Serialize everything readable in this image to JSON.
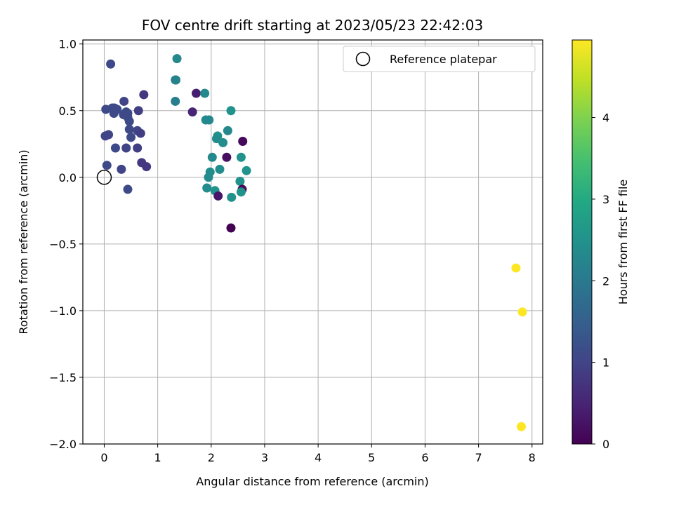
{
  "chart_data": {
    "type": "scatter",
    "title": "FOV centre drift starting at 2023/05/23 22:42:03",
    "xlabel": "Angular distance from reference (arcmin)",
    "ylabel": "Rotation from reference (arcmin)",
    "xlim": [
      -0.4,
      8.2
    ],
    "ylim": [
      -2.0,
      1.03
    ],
    "xticks": [
      0,
      1,
      2,
      3,
      4,
      5,
      6,
      7,
      8
    ],
    "xtick_labels": [
      "0",
      "1",
      "2",
      "3",
      "4",
      "5",
      "6",
      "7",
      "8"
    ],
    "yticks": [
      1.0,
      0.5,
      0.0,
      -0.5,
      -1.0,
      -1.5,
      -2.0
    ],
    "ytick_labels": [
      "1.0",
      "0.5",
      "0.0",
      "−0.5",
      "−1.0",
      "−1.5",
      "−2.0"
    ],
    "grid": true,
    "legend": {
      "placement": "top-right",
      "entries": [
        "Reference platepar"
      ]
    },
    "reference": {
      "x": 0,
      "y": 0
    },
    "colorbar": {
      "label": "Hours from first FF file",
      "min": 0,
      "max": 4.95,
      "ticks": [
        0,
        1,
        2,
        3,
        4
      ],
      "tick_labels": [
        "0",
        "1",
        "2",
        "3",
        "4"
      ],
      "colormap": "viridis"
    },
    "points": [
      {
        "x": 0.12,
        "y": 0.85,
        "h": 1.1
      },
      {
        "x": 0.03,
        "y": 0.51,
        "h": 1.1
      },
      {
        "x": 0.15,
        "y": 0.52,
        "h": 1.1
      },
      {
        "x": 0.19,
        "y": 0.52,
        "h": 1.1
      },
      {
        "x": 0.24,
        "y": 0.51,
        "h": 1.1
      },
      {
        "x": 0.18,
        "y": 0.48,
        "h": 1.1
      },
      {
        "x": 0.37,
        "y": 0.57,
        "h": 1.0
      },
      {
        "x": 0.36,
        "y": 0.47,
        "h": 1.1
      },
      {
        "x": 0.41,
        "y": 0.49,
        "h": 1.1
      },
      {
        "x": 0.44,
        "y": 0.48,
        "h": 1.1
      },
      {
        "x": 0.44,
        "y": 0.45,
        "h": 1.1
      },
      {
        "x": 0.47,
        "y": 0.42,
        "h": 1.1
      },
      {
        "x": 0.47,
        "y": 0.36,
        "h": 1.1
      },
      {
        "x": 0.5,
        "y": 0.3,
        "h": 1.1
      },
      {
        "x": 0.02,
        "y": 0.31,
        "h": 1.0
      },
      {
        "x": 0.08,
        "y": 0.32,
        "h": 1.0
      },
      {
        "x": 0.21,
        "y": 0.22,
        "h": 1.1
      },
      {
        "x": 0.41,
        "y": 0.22,
        "h": 1.0
      },
      {
        "x": 0.62,
        "y": 0.35,
        "h": 1.0
      },
      {
        "x": 0.68,
        "y": 0.33,
        "h": 0.9
      },
      {
        "x": 0.64,
        "y": 0.5,
        "h": 0.9
      },
      {
        "x": 0.74,
        "y": 0.62,
        "h": 0.8
      },
      {
        "x": 0.62,
        "y": 0.22,
        "h": 0.9
      },
      {
        "x": 0.05,
        "y": 0.09,
        "h": 1.1
      },
      {
        "x": 0.32,
        "y": 0.06,
        "h": 1.0
      },
      {
        "x": 0.7,
        "y": 0.11,
        "h": 0.8
      },
      {
        "x": 0.79,
        "y": 0.08,
        "h": 0.8
      },
      {
        "x": 0.44,
        "y": -0.09,
        "h": 1.1
      },
      {
        "x": 1.36,
        "y": 0.89,
        "h": 2.3
      },
      {
        "x": 1.33,
        "y": 0.73,
        "h": 2.1
      },
      {
        "x": 1.34,
        "y": 0.73,
        "h": 2.2
      },
      {
        "x": 1.33,
        "y": 0.57,
        "h": 2.1
      },
      {
        "x": 1.72,
        "y": 0.63,
        "h": 0.4
      },
      {
        "x": 1.88,
        "y": 0.63,
        "h": 2.3
      },
      {
        "x": 1.65,
        "y": 0.49,
        "h": 0.5
      },
      {
        "x": 1.9,
        "y": 0.43,
        "h": 2.3
      },
      {
        "x": 1.96,
        "y": 0.43,
        "h": 2.3
      },
      {
        "x": 2.37,
        "y": 0.5,
        "h": 2.5
      },
      {
        "x": 2.31,
        "y": 0.35,
        "h": 2.3
      },
      {
        "x": 2.12,
        "y": 0.31,
        "h": 2.5
      },
      {
        "x": 2.1,
        "y": 0.29,
        "h": 2.4
      },
      {
        "x": 2.22,
        "y": 0.26,
        "h": 2.4
      },
      {
        "x": 2.59,
        "y": 0.27,
        "h": 0.1
      },
      {
        "x": 2.02,
        "y": 0.15,
        "h": 2.3
      },
      {
        "x": 2.29,
        "y": 0.15,
        "h": 0.2
      },
      {
        "x": 2.56,
        "y": 0.15,
        "h": 2.5
      },
      {
        "x": 2.66,
        "y": 0.05,
        "h": 2.5
      },
      {
        "x": 2.16,
        "y": 0.06,
        "h": 2.4
      },
      {
        "x": 1.98,
        "y": 0.04,
        "h": 2.4
      },
      {
        "x": 1.95,
        "y": 0.0,
        "h": 2.4
      },
      {
        "x": 2.54,
        "y": -0.03,
        "h": 2.5
      },
      {
        "x": 1.92,
        "y": -0.08,
        "h": 2.4
      },
      {
        "x": 2.07,
        "y": -0.1,
        "h": 2.5
      },
      {
        "x": 2.58,
        "y": -0.09,
        "h": 0.1
      },
      {
        "x": 2.56,
        "y": -0.11,
        "h": 2.5
      },
      {
        "x": 2.13,
        "y": -0.14,
        "h": 0.3
      },
      {
        "x": 2.38,
        "y": -0.15,
        "h": 2.5
      },
      {
        "x": 2.37,
        "y": -0.38,
        "h": 0.0
      },
      {
        "x": 7.7,
        "y": -0.68,
        "h": 4.95
      },
      {
        "x": 7.82,
        "y": -1.01,
        "h": 4.95
      },
      {
        "x": 7.8,
        "y": -1.87,
        "h": 4.95
      }
    ]
  }
}
